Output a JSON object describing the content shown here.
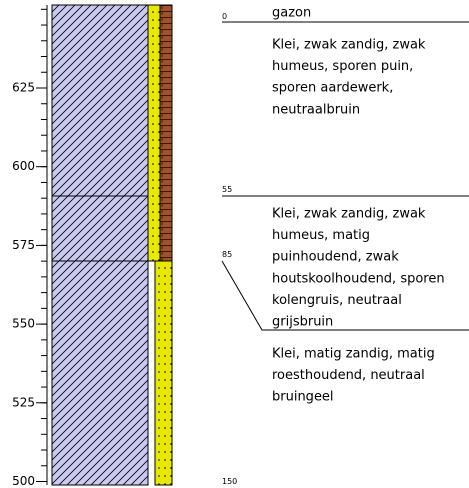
{
  "axis": {
    "ticks": [
      "625",
      "600",
      "575",
      "550",
      "525",
      "500"
    ]
  },
  "depths": [
    "0",
    "55",
    "85",
    "150"
  ],
  "layers": [
    {
      "title": "gazon",
      "lines": [
        "Klei, zwak zandig, zwak",
        "humeus, sporen puin,",
        "sporen aardewerk,",
        "neutraalbruin"
      ]
    },
    {
      "lines": [
        "Klei, zwak zandig, zwak",
        "humeus, matig",
        "puinhoudend, zwak",
        "houtskoolhoudend, sporen",
        "kolengruis, neutraal",
        "grijsbruin"
      ]
    },
    {
      "lines": [
        "Klei, matig zandig, matig",
        "roesthoudend, neutraal",
        "bruingeel"
      ]
    }
  ]
}
